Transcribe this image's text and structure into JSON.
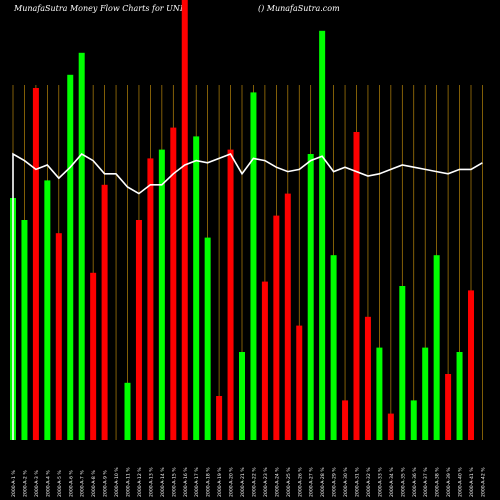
{
  "header": {
    "title": "MunafaSutra  Money Flow  Charts for UND",
    "site": "() MunafaSutra.com"
  },
  "colors": {
    "background": "#000000",
    "up": "#00ff00",
    "down": "#ff0000",
    "grid": "#b8860b",
    "line": "#ffffff",
    "label": "#ffffff"
  },
  "chart_data": {
    "type": "bar",
    "grid": true,
    "ylim": [
      0,
      100
    ],
    "categories": [
      "2000-A-1 %",
      "2000-A-2 %",
      "2000-A-3 %",
      "2000-A-4 %",
      "2000-A-5 %",
      "2000-A-6 %",
      "2000-A-7 %",
      "2000-A-8 %",
      "2000-A-9 %",
      "2000-A-10 %",
      "2000-A-11 %",
      "2000-A-12 %",
      "2000-A-13 %",
      "2000-A-14 %",
      "2000-A-15 %",
      "2000-A-16 %",
      "2000-A-17 %",
      "2000-A-18 %",
      "2000-A-19 %",
      "2000-A-20 %",
      "2000-A-21 %",
      "2000-A-22 %",
      "2000-A-23 %",
      "2000-A-24 %",
      "2000-A-25 %",
      "2000-A-26 %",
      "2000-A-27 %",
      "2000-A-28 %",
      "2000-A-29 %",
      "2000-A-30 %",
      "2000-A-31 %",
      "2000-A-32 %",
      "2000-A-33 %",
      "2000-A-34 %",
      "2000-A-35 %",
      "2000-A-36 %",
      "2000-A-37 %",
      "2000-A-38 %",
      "2000-A-39 %",
      "2000-A-40 %",
      "2000-A-41 %",
      "2000-A-42 %"
    ],
    "series": [
      {
        "kind": "bars",
        "values": [
          55,
          50,
          80,
          59,
          47,
          83,
          88,
          38,
          58,
          0,
          13,
          50,
          64,
          66,
          71,
          100,
          69,
          46,
          10,
          66,
          20,
          79,
          36,
          51,
          56,
          26,
          65,
          93,
          42,
          9,
          70,
          28,
          21,
          6,
          35,
          9,
          21,
          42,
          15,
          20,
          34,
          0
        ],
        "colors": [
          "up",
          "up",
          "down",
          "up",
          "down",
          "up",
          "up",
          "down",
          "down",
          "down",
          "up",
          "down",
          "down",
          "up",
          "down",
          "down",
          "up",
          "up",
          "down",
          "down",
          "up",
          "up",
          "down",
          "down",
          "down",
          "down",
          "up",
          "up",
          "up",
          "down",
          "down",
          "down",
          "up",
          "down",
          "up",
          "up",
          "up",
          "up",
          "down",
          "up",
          "down",
          "down"
        ]
      },
      {
        "kind": "line",
        "values": [
          65,
          63.5,
          61.5,
          62.5,
          59.5,
          62,
          65,
          63.5,
          60.5,
          60.5,
          57.5,
          56,
          58,
          58,
          60.5,
          62.5,
          63.5,
          63,
          64,
          65,
          60.5,
          64,
          63.5,
          62,
          61,
          61.5,
          63.5,
          64.5,
          61,
          62,
          61,
          60,
          60.5,
          61.5,
          62.5,
          62,
          61.5,
          61,
          60.5,
          61.5,
          61.5,
          63
        ]
      }
    ]
  }
}
